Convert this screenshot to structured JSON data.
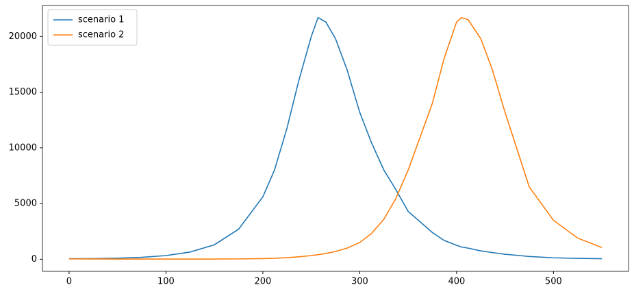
{
  "chart_data": {
    "type": "line",
    "x": [
      0,
      25,
      50,
      75,
      100,
      125,
      150,
      175,
      200,
      212,
      225,
      237,
      250,
      257,
      265,
      275,
      287,
      300,
      312,
      325,
      337,
      350,
      375,
      387,
      400,
      405,
      412,
      425,
      437,
      450,
      475,
      500,
      525,
      550
    ],
    "series": [
      {
        "name": "scenario 1",
        "color": "#1f77b4",
        "values": [
          50,
          60,
          100,
          170,
          330,
          650,
          1300,
          2700,
          5600,
          8000,
          11800,
          16000,
          20000,
          21700,
          21300,
          19800,
          17000,
          13200,
          10500,
          8000,
          6300,
          4300,
          2400,
          1700,
          1250,
          1100,
          1000,
          750,
          600,
          450,
          250,
          130,
          80,
          50
        ]
      },
      {
        "name": "scenario 2",
        "color": "#ff7f0e",
        "values": [
          30,
          25,
          20,
          20,
          20,
          20,
          20,
          30,
          60,
          90,
          140,
          220,
          330,
          410,
          520,
          700,
          1000,
          1500,
          2300,
          3600,
          5400,
          8000,
          14000,
          18000,
          21300,
          21700,
          21500,
          19800,
          17000,
          13200,
          6500,
          3500,
          1900,
          1050
        ]
      }
    ],
    "xlim": [
      -27.5,
      577.5
    ],
    "ylim": [
      -1085,
      22785
    ],
    "xticks": [
      0,
      100,
      200,
      300,
      400,
      500
    ],
    "yticks": [
      0,
      5000,
      10000,
      15000,
      20000
    ],
    "legend": "upper left"
  }
}
